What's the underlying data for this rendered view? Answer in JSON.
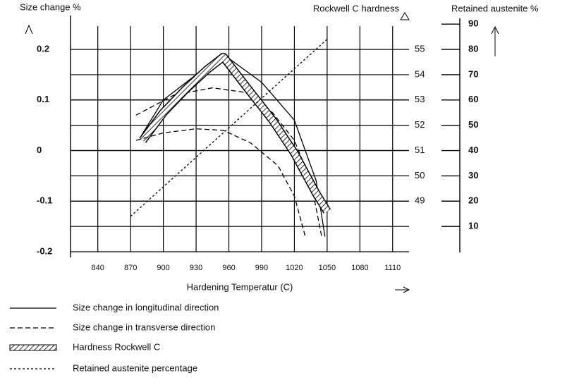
{
  "chart_data": {
    "type": "line",
    "y_label": "Size change %",
    "y2_label": "Rockwell C hardness",
    "y3_label": "Retained austenite %",
    "x_label": "Hardening Temperatur (C)",
    "xlim": [
      815,
      1125
    ],
    "xticks": [
      840,
      870,
      900,
      930,
      960,
      990,
      1020,
      1050,
      1080,
      1110
    ],
    "ylim": [
      -0.2,
      0.26
    ],
    "yticks": [
      0.2,
      0.1,
      0,
      -0.1,
      -0.2
    ],
    "y2lim": [
      47,
      56.2
    ],
    "y2ticks": [
      55,
      54,
      53,
      52,
      51,
      50,
      49
    ],
    "y3lim": [
      0,
      92
    ],
    "y3ticks": [
      90,
      80,
      70,
      60,
      50,
      40,
      30,
      20,
      10
    ],
    "grid": true,
    "series": [
      {
        "name": "Size change in longitudinal direction",
        "color": "#000000",
        "line_style": "solid",
        "x": [
          880,
          900,
          930,
          955,
          990,
          1020,
          1040,
          1048
        ],
        "values": [
          0.03,
          0.1,
          0.15,
          0.19,
          0.135,
          0.06,
          -0.06,
          -0.17
        ]
      },
      {
        "name": "Size change in transverse direction",
        "color": "#000000",
        "line_style": "dash",
        "x": [
          875,
          910,
          945,
          975,
          1000,
          1020,
          1035,
          1045
        ],
        "values": [
          0.07,
          0.11,
          0.124,
          0.115,
          0.075,
          0.02,
          -0.06,
          -0.17
        ]
      },
      {
        "name": "Hardness Rockwell C",
        "color": "#000000",
        "line_style": "hatch",
        "axis": "y2",
        "x": [
          881,
          900,
          920,
          940,
          955,
          980,
          1000,
          1020,
          1040,
          1050
        ],
        "values": [
          51.4,
          52.5,
          53.4,
          54.2,
          54.7,
          53.3,
          52.2,
          50.9,
          49.3,
          48.6
        ]
      },
      {
        "name": "Retained austenite percentage",
        "color": "#000000",
        "line_style": "dot",
        "axis": "y3",
        "x": [
          870,
          1050
        ],
        "values": [
          14,
          84
        ]
      },
      {
        "color": "#000000",
        "line_style": "dash",
        "x": [
          875,
          900,
          930,
          955,
          980,
          1005,
          1020,
          1030
        ],
        "values": [
          0.02,
          0.035,
          0.043,
          0.04,
          0.015,
          -0.03,
          -0.09,
          -0.17
        ]
      }
    ]
  }
}
